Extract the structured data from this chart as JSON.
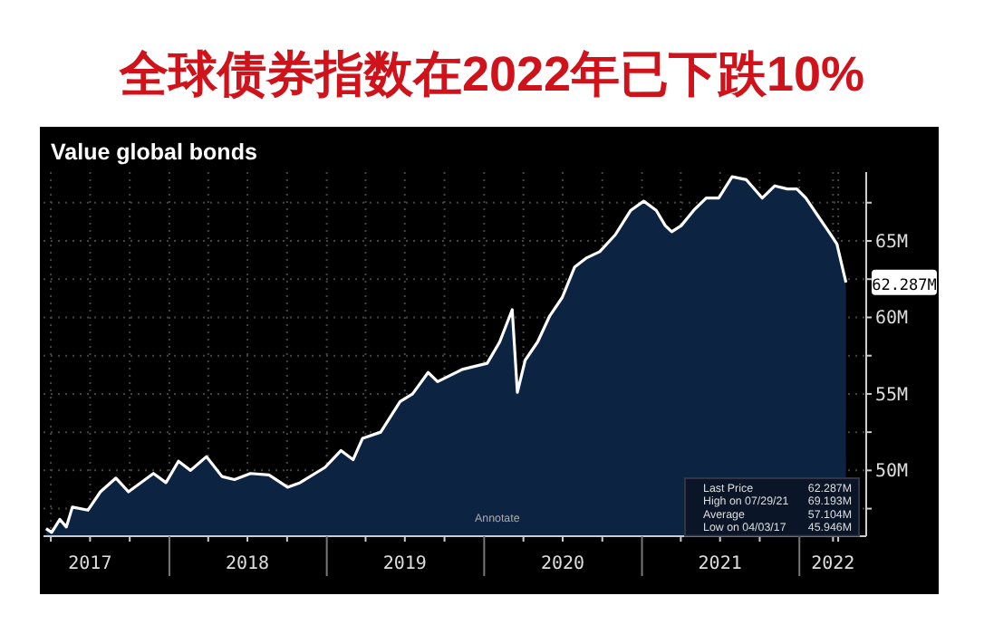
{
  "chart_data": {
    "type": "area",
    "title": "全球债券指数在2022年已下跌10%",
    "subtitle": "Value global bonds",
    "annotations": [
      "Last Price",
      "62.287M",
      "High on 07/29/21",
      "69.193M",
      "Average",
      "57.104M",
      "Low on 04/03/17",
      "45.946M",
      "Annotate"
    ],
    "x": [
      "2017-03-21",
      "2017-04-03",
      "2017-04-22",
      "2017-05-07",
      "2017-05-21",
      "2017-06-26",
      "2017-07-25",
      "2017-08-30",
      "2017-09-28",
      "2017-11-25",
      "2017-12-24",
      "2018-01-22",
      "2018-02-19",
      "2018-03-28",
      "2018-05-03",
      "2018-06-01",
      "2018-07-08",
      "2018-08-20",
      "2018-10-02",
      "2018-10-31",
      "2018-12-28",
      "2019-02-03",
      "2019-03-03",
      "2019-03-25",
      "2019-05-06",
      "2019-06-20",
      "2019-07-19",
      "2019-08-24",
      "2019-09-15",
      "2019-11-11",
      "2020-01-08",
      "2020-02-06",
      "2020-03-06",
      "2020-03-18",
      "2020-04-05",
      "2020-05-04",
      "2020-06-01",
      "2020-06-30",
      "2020-07-29",
      "2020-08-26",
      "2020-09-25",
      "2020-10-31",
      "2020-12-06",
      "2021-01-05",
      "2021-02-03",
      "2021-02-24",
      "2021-03-11",
      "2021-04-02",
      "2021-05-01",
      "2021-05-30",
      "2021-06-28",
      "2021-07-29",
      "2021-08-31",
      "2021-10-07",
      "2021-11-05",
      "2021-12-04",
      "2021-12-26",
      "2022-01-16",
      "2022-02-14",
      "2022-03-15",
      "2022-03-29",
      "2022-04-19"
    ],
    "series": [
      {
        "color": "#ffffff",
        "values": [
          46.2,
          45.946,
          46.8,
          46.3,
          47.6,
          47.4,
          48.6,
          49.5,
          48.6,
          49.8,
          49.2,
          50.6,
          50.0,
          50.9,
          49.6,
          49.4,
          49.8,
          49.7,
          48.9,
          49.2,
          50.2,
          51.3,
          50.7,
          52.1,
          52.5,
          54.5,
          55.0,
          56.4,
          55.8,
          56.6,
          57.0,
          58.4,
          60.5,
          55.1,
          57.2,
          58.4,
          60.1,
          61.3,
          63.3,
          63.9,
          64.3,
          65.4,
          67.0,
          67.6,
          67.0,
          66.0,
          65.6,
          66.0,
          67.0,
          67.8,
          67.8,
          69.193,
          69.0,
          67.8,
          68.6,
          68.4,
          68.4,
          67.8,
          66.6,
          65.4,
          64.8,
          62.287
        ],
        "value_labels": [
          null,
          null,
          null,
          null,
          null,
          null,
          null,
          null,
          null,
          null,
          null,
          null,
          null,
          null,
          null,
          null,
          null,
          null,
          null,
          null,
          null,
          null,
          null,
          null,
          null,
          null,
          null,
          null,
          null,
          null,
          null,
          null,
          null,
          null,
          null,
          null,
          null,
          null,
          null,
          null,
          null,
          null,
          null,
          null,
          null,
          null,
          null,
          null,
          null,
          null,
          null,
          null,
          null,
          null,
          null,
          null,
          null,
          null,
          null,
          null,
          null,
          "62.287M"
        ]
      }
    ],
    "xlim": [
      "2017-03-15",
      "2022-06-05"
    ],
    "xticks": [
      {
        "value": "2017-04-01",
        "label": null
      },
      {
        "value": "2017-07-01",
        "label": "2017"
      },
      {
        "value": "2017-10-01",
        "label": null
      },
      {
        "value": "2018-01-01",
        "label": null
      },
      {
        "value": "2018-04-01",
        "label": null
      },
      {
        "value": "2018-07-01",
        "label": "2018"
      },
      {
        "value": "2018-10-01",
        "label": null
      },
      {
        "value": "2019-01-01",
        "label": null
      },
      {
        "value": "2019-04-01",
        "label": null
      },
      {
        "value": "2019-07-01",
        "label": "2019"
      },
      {
        "value": "2019-10-01",
        "label": null
      },
      {
        "value": "2020-01-01",
        "label": null
      },
      {
        "value": "2020-04-01",
        "label": null
      },
      {
        "value": "2020-07-01",
        "label": "2020"
      },
      {
        "value": "2020-10-01",
        "label": null
      },
      {
        "value": "2021-01-01",
        "label": null
      },
      {
        "value": "2021-04-01",
        "label": null
      },
      {
        "value": "2021-07-01",
        "label": "2021"
      },
      {
        "value": "2021-10-01",
        "label": null
      },
      {
        "value": "2022-01-01",
        "label": null
      },
      {
        "value": "2022-03-20",
        "label": "2022"
      },
      {
        "value": "2022-04-01",
        "label": null
      }
    ],
    "ylim": [
      45.7,
      69.5
    ],
    "yticks": [
      {
        "value": 47.5,
        "label": null
      },
      {
        "value": 50,
        "label": "50M"
      },
      {
        "value": 52.5,
        "label": null
      },
      {
        "value": 55,
        "label": "55M"
      },
      {
        "value": 57.5,
        "label": null
      },
      {
        "value": 60,
        "label": "60M"
      },
      {
        "value": 62.5,
        "label": null
      },
      {
        "value": 65,
        "label": "65M"
      },
      {
        "value": 67.5,
        "label": null
      }
    ],
    "grid": true
  }
}
